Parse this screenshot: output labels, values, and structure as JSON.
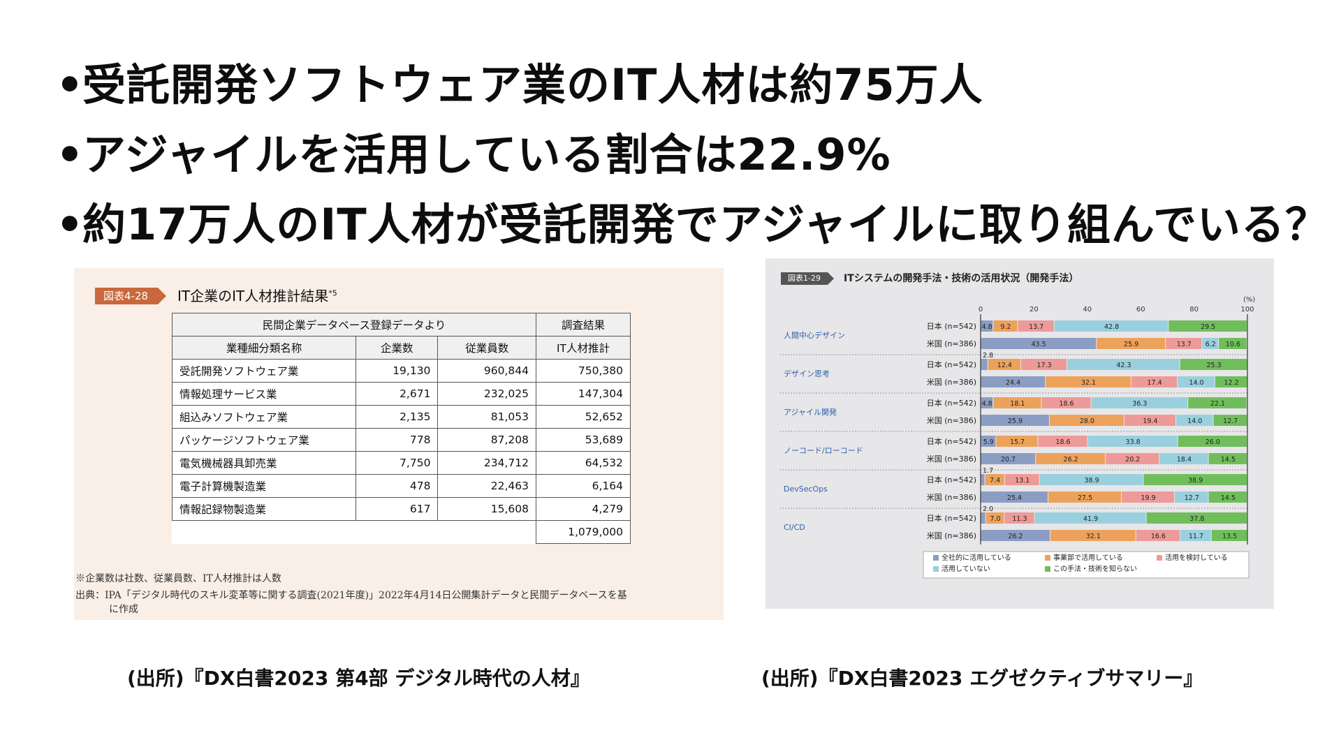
{
  "bullets": [
    "受託開発ソフトウェア業のIT人材は約75万人",
    "アジャイルを活用している割合は22.9%",
    "約17万人のIT人材が受託開発でアジャイルに取り組んでいる？"
  ],
  "bullet_marker": "•",
  "left_figure": {
    "tag": "図表4-28",
    "title": "IT企業のIT人材推計結果",
    "title_sup": "*5",
    "group_header_left": "民間企業データベース登録データより",
    "group_header_right": "調査結果",
    "columns": [
      "業種細分類名称",
      "企業数",
      "従業員数",
      "IT人材推計"
    ],
    "rows": [
      [
        "受託開発ソフトウェア業",
        "19,130",
        "960,844",
        "750,380"
      ],
      [
        "情報処理サービス業",
        "2,671",
        "232,025",
        "147,304"
      ],
      [
        "組込みソフトウェア業",
        "2,135",
        "81,053",
        "52,652"
      ],
      [
        "パッケージソフトウェア業",
        "778",
        "87,208",
        "53,689"
      ],
      [
        "電気機械器具卸売業",
        "7,750",
        "234,712",
        "64,532"
      ],
      [
        "電子計算機製造業",
        "478",
        "22,463",
        "6,164"
      ],
      [
        "情報記録物製造業",
        "617",
        "15,608",
        "4,279"
      ]
    ],
    "total": "1,079,000",
    "note1": "※企業数は社数、従業員数、IT人材推計は人数",
    "note2": "出典：IPA「デジタル時代のスキル変革等に関する調査(2021年度)」2022年4月14日公開集計データと民間データベースを基",
    "note3": "に作成"
  },
  "right_figure": {
    "tag": "図表1-29",
    "title": "ITシステムの開発手法・技術の活用状況（開発手法）"
  },
  "chart_data": {
    "type": "bar",
    "orientation": "horizontal-stacked-100",
    "unit": "(%)",
    "xlim": [
      0,
      100
    ],
    "xticks": [
      "0",
      "20",
      "40",
      "60",
      "80",
      "100"
    ],
    "colors": [
      "#8b9dc3",
      "#eda25b",
      "#ee9a98",
      "#9ad0de",
      "#70be5b"
    ],
    "series_names": [
      "全社的に活用している",
      "事業部で活用している",
      "活用を検討している",
      "活用していない",
      "この手法・技術を知らない"
    ],
    "groups": [
      {
        "label": "人間中心デザイン",
        "rows": [
          {
            "label": "日本 (n=542)",
            "values": [
              4.8,
              9.2,
              13.7,
              42.8,
              29.5
            ]
          },
          {
            "label": "米国 (n=386)",
            "values": [
              43.5,
              25.9,
              13.7,
              6.2,
              10.6
            ]
          }
        ]
      },
      {
        "label": "デザイン思考",
        "rows": [
          {
            "label": "日本 (n=542)",
            "values": [
              2.8,
              12.4,
              17.3,
              42.3,
              25.3
            ]
          },
          {
            "label": "米国 (n=386)",
            "values": [
              24.4,
              32.1,
              17.4,
              14.0,
              12.2
            ]
          }
        ]
      },
      {
        "label": "アジャイル開発",
        "rows": [
          {
            "label": "日本 (n=542)",
            "values": [
              4.8,
              18.1,
              18.6,
              36.3,
              22.1
            ]
          },
          {
            "label": "米国 (n=386)",
            "values": [
              25.9,
              28.0,
              19.4,
              14.0,
              12.7
            ]
          }
        ]
      },
      {
        "label": "ノーコード/ローコード",
        "rows": [
          {
            "label": "日本 (n=542)",
            "values": [
              5.9,
              15.7,
              18.6,
              33.8,
              26.0
            ]
          },
          {
            "label": "米国 (n=386)",
            "values": [
              20.7,
              26.2,
              20.2,
              18.4,
              14.5
            ]
          }
        ]
      },
      {
        "label": "DevSecOps",
        "rows": [
          {
            "label": "日本 (n=542)",
            "values": [
              1.7,
              7.4,
              13.1,
              38.9,
              38.9
            ]
          },
          {
            "label": "米国 (n=386)",
            "values": [
              25.4,
              27.5,
              19.9,
              12.7,
              14.5
            ]
          }
        ]
      },
      {
        "label": "CI/CD",
        "rows": [
          {
            "label": "日本 (n=542)",
            "values": [
              2.0,
              7.0,
              11.3,
              41.9,
              37.8
            ]
          },
          {
            "label": "米国 (n=386)",
            "values": [
              26.2,
              32.1,
              16.6,
              11.7,
              13.5
            ]
          }
        ]
      }
    ],
    "legend_placement": "bottom"
  },
  "sources": {
    "left": "(出所)『DX白書2023 第4部 デジタル時代の人材』",
    "right": "(出所)『DX白書2023 エグゼクティブサマリー』"
  }
}
